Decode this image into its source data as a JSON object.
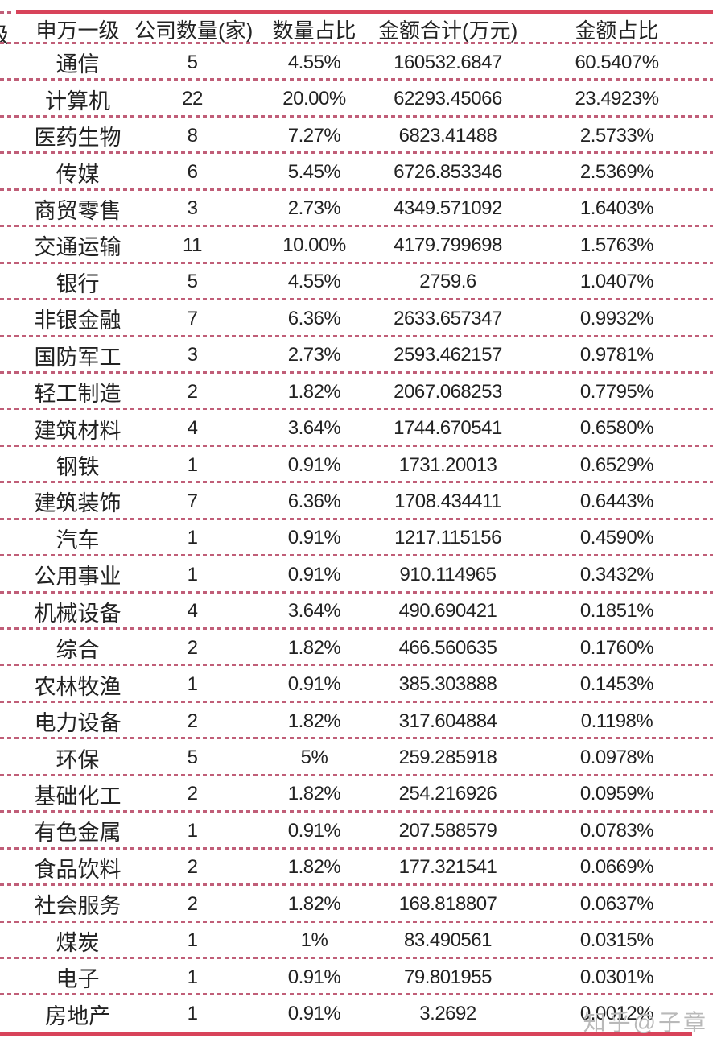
{
  "colors": {
    "solid_line": "#d8435a",
    "dashed_line": "#c05e78",
    "text": "#222222",
    "watermark": "#b9b9b9",
    "background": "#ffffff"
  },
  "watermark": {
    "text": "知乎@子章"
  },
  "table": {
    "partial_left_column_header": "级"
  },
  "chart_data": {
    "type": "table",
    "title": "",
    "columns": [
      "申万一级",
      "公司数量(家)",
      "数量占比",
      "金额合计(万元)",
      "金额占比"
    ],
    "rows": [
      [
        "通信",
        "5",
        "4.55%",
        "160532.6847",
        "60.5407%"
      ],
      [
        "计算机",
        "22",
        "20.00%",
        "62293.45066",
        "23.4923%"
      ],
      [
        "医药生物",
        "8",
        "7.27%",
        "6823.41488",
        "2.5733%"
      ],
      [
        "传媒",
        "6",
        "5.45%",
        "6726.853346",
        "2.5369%"
      ],
      [
        "商贸零售",
        "3",
        "2.73%",
        "4349.571092",
        "1.6403%"
      ],
      [
        "交通运输",
        "11",
        "10.00%",
        "4179.799698",
        "1.5763%"
      ],
      [
        "银行",
        "5",
        "4.55%",
        "2759.6",
        "1.0407%"
      ],
      [
        "非银金融",
        "7",
        "6.36%",
        "2633.657347",
        "0.9932%"
      ],
      [
        "国防军工",
        "3",
        "2.73%",
        "2593.462157",
        "0.9781%"
      ],
      [
        "轻工制造",
        "2",
        "1.82%",
        "2067.068253",
        "0.7795%"
      ],
      [
        "建筑材料",
        "4",
        "3.64%",
        "1744.670541",
        "0.6580%"
      ],
      [
        "钢铁",
        "1",
        "0.91%",
        "1731.20013",
        "0.6529%"
      ],
      [
        "建筑装饰",
        "7",
        "6.36%",
        "1708.434411",
        "0.6443%"
      ],
      [
        "汽车",
        "1",
        "0.91%",
        "1217.115156",
        "0.4590%"
      ],
      [
        "公用事业",
        "1",
        "0.91%",
        "910.114965",
        "0.3432%"
      ],
      [
        "机械设备",
        "4",
        "3.64%",
        "490.690421",
        "0.1851%"
      ],
      [
        "综合",
        "2",
        "1.82%",
        "466.560635",
        "0.1760%"
      ],
      [
        "农林牧渔",
        "1",
        "0.91%",
        "385.303888",
        "0.1453%"
      ],
      [
        "电力设备",
        "2",
        "1.82%",
        "317.604884",
        "0.1198%"
      ],
      [
        "环保",
        "5",
        "5%",
        "259.285918",
        "0.0978%"
      ],
      [
        "基础化工",
        "2",
        "1.82%",
        "254.216926",
        "0.0959%"
      ],
      [
        "有色金属",
        "1",
        "0.91%",
        "207.588579",
        "0.0783%"
      ],
      [
        "食品饮料",
        "2",
        "1.82%",
        "177.321541",
        "0.0669%"
      ],
      [
        "社会服务",
        "2",
        "1.82%",
        "168.818807",
        "0.0637%"
      ],
      [
        "煤炭",
        "1",
        "1%",
        "83.490561",
        "0.0315%"
      ],
      [
        "电子",
        "1",
        "0.91%",
        "79.801955",
        "0.0301%"
      ],
      [
        "房地产",
        "1",
        "0.91%",
        "3.2692",
        "0.0012%"
      ]
    ]
  }
}
